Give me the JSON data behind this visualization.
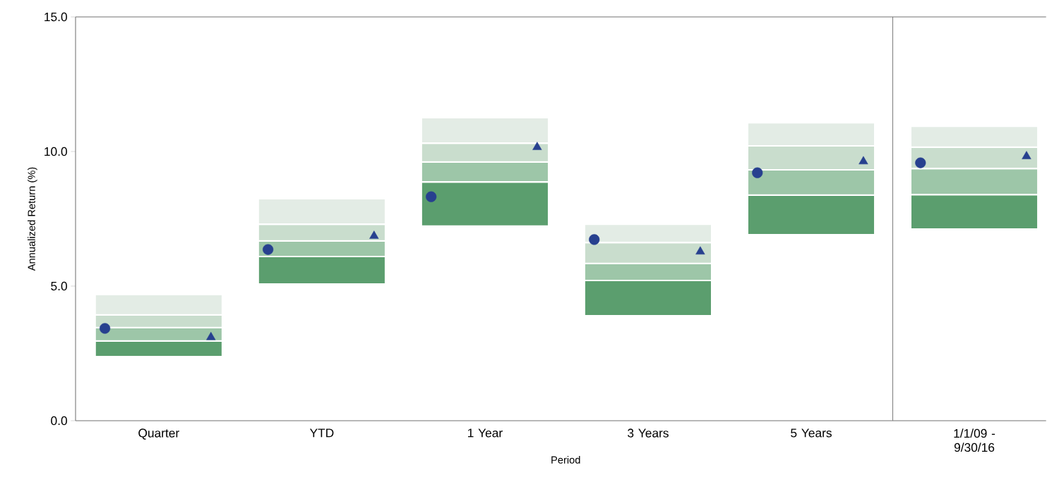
{
  "chart_data": {
    "type": "bar",
    "categories": [
      "Quarter",
      "YTD",
      "1 Year",
      "3 Years",
      "5 Years",
      "1/1/09 - 9/30/16"
    ],
    "series": [
      {
        "color": "#5b9e6e",
        "base": [
          2.38,
          5.08,
          7.23,
          3.9,
          6.91,
          7.12
        ],
        "values": [
          0.58,
          1.02,
          1.64,
          1.31,
          1.47,
          1.28
        ]
      },
      {
        "color": "#9dc6a8",
        "base": [
          2.96,
          6.1,
          8.87,
          5.21,
          8.38,
          8.4
        ],
        "values": [
          0.5,
          0.58,
          0.74,
          0.63,
          0.94,
          0.97
        ]
      },
      {
        "color": "#c9ddcd",
        "base": [
          3.46,
          6.68,
          9.61,
          5.84,
          9.32,
          9.37
        ],
        "values": [
          0.47,
          0.62,
          0.7,
          0.78,
          0.89,
          0.79
        ]
      },
      {
        "color": "#e3ece5",
        "base": [
          3.93,
          7.3,
          10.31,
          6.62,
          10.21,
          10.16
        ],
        "values": [
          0.76,
          0.95,
          0.95,
          0.68,
          0.86,
          0.78
        ]
      },
      {
        "type": "scatter",
        "marker": "circle",
        "color": "#27408f",
        "x": [
          "Quarter",
          "YTD",
          "1 Year",
          "3 Years",
          "5 Years",
          "1/1/09 - 9/30/16"
        ],
        "values": [
          3.43,
          6.36,
          8.32,
          6.73,
          9.21,
          9.58
        ]
      },
      {
        "type": "scatter",
        "marker": "triangle",
        "color": "#27408f",
        "x": [
          "Quarter",
          "YTD",
          "1 Year",
          "3 Years",
          "5 Years",
          "1/1/09 - 9/30/16"
        ],
        "values": [
          3.1,
          6.86,
          10.16,
          6.28,
          9.63,
          9.82
        ]
      }
    ],
    "xlabel": "Period",
    "ylabel": "Annualized Return (%)",
    "ylim": [
      0,
      15
    ],
    "yticks": [
      {
        "value": 0,
        "label": "0.0"
      },
      {
        "value": 5,
        "label": "5.0"
      },
      {
        "value": 10,
        "label": "10.0"
      },
      {
        "value": 15,
        "label": "15.0"
      }
    ]
  }
}
